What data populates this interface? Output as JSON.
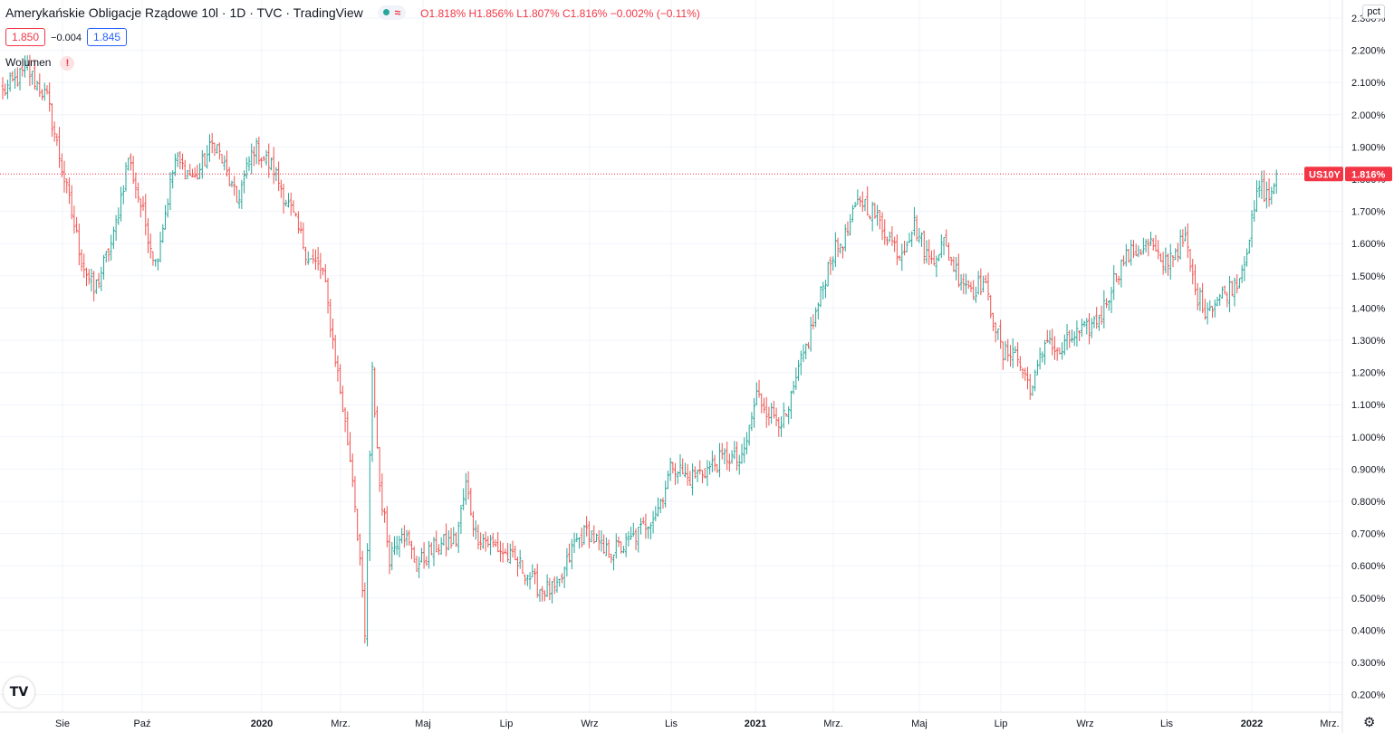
{
  "header": {
    "title": "Amerykańskie Obligacje Rządowe 10l · 1D · TVC · TradingView",
    "approx_symbol": "≈",
    "ohlc": {
      "o_label": "O",
      "o": "1.818%",
      "h_label": "H",
      "h": "1.856%",
      "l_label": "L",
      "l": "1.807%",
      "c_label": "C",
      "c": "1.816%",
      "change": "−0.002% (−0.11%)"
    }
  },
  "quotes": {
    "bid": "1.850",
    "spread": "−0.004",
    "ask": "1.845"
  },
  "volume": {
    "label": "Wolumen",
    "warning": "!"
  },
  "scale_button": "pct",
  "logo_text": "TV",
  "price_tag": {
    "symbol": "US10Y",
    "value": "1.816%"
  },
  "colors": {
    "up": "#26a69a",
    "down": "#ef5350",
    "grid": "#f0f3fa",
    "tag_bg": "#f23645",
    "ask": "#2962ff"
  },
  "icons": {
    "settings": "gear-icon",
    "warning": "warning-icon",
    "logo": "tradingview-logo-icon"
  },
  "chart_data": {
    "type": "ohlc",
    "title": "Amerykańskie Obligacje Rządowe 10l",
    "unit": "%",
    "ylim": [
      0.16,
      2.25
    ],
    "yticks": [
      "2.300%",
      "2.200%",
      "2.100%",
      "2.000%",
      "1.900%",
      "1.800%",
      "1.700%",
      "1.600%",
      "1.500%",
      "1.400%",
      "1.300%",
      "1.200%",
      "1.100%",
      "1.000%",
      "0.900%",
      "0.800%",
      "0.700%",
      "0.600%",
      "0.500%",
      "0.400%",
      "0.300%",
      "0.200%"
    ],
    "xticks": [
      "Sie",
      "Paź",
      "2020",
      "Mrz.",
      "Maj",
      "Lip",
      "Wrz",
      "Lis",
      "2021",
      "Mrz.",
      "Maj",
      "Lip",
      "Wrz",
      "Lis",
      "2022",
      "Mrz."
    ],
    "xticks_bold": [
      "2020",
      "2021",
      "2022"
    ],
    "last_close": 1.816,
    "path_points": [
      [
        0,
        2.07
      ],
      [
        10,
        2.14
      ],
      [
        18,
        2.05
      ],
      [
        25,
        1.8
      ],
      [
        32,
        1.55
      ],
      [
        37,
        1.45
      ],
      [
        45,
        1.62
      ],
      [
        51,
        1.87
      ],
      [
        58,
        1.66
      ],
      [
        62,
        1.54
      ],
      [
        70,
        1.86
      ],
      [
        78,
        1.8
      ],
      [
        86,
        1.92
      ],
      [
        95,
        1.73
      ],
      [
        102,
        1.9
      ],
      [
        110,
        1.83
      ],
      [
        118,
        1.68
      ],
      [
        124,
        1.56
      ],
      [
        130,
        1.51
      ],
      [
        138,
        1.09
      ],
      [
        142,
        0.88
      ],
      [
        145,
        0.62
      ],
      [
        147,
        0.37
      ],
      [
        150,
        1.2
      ],
      [
        153,
        0.85
      ],
      [
        157,
        0.63
      ],
      [
        162,
        0.72
      ],
      [
        168,
        0.6
      ],
      [
        176,
        0.66
      ],
      [
        184,
        0.68
      ],
      [
        188,
        0.85
      ],
      [
        192,
        0.7
      ],
      [
        200,
        0.66
      ],
      [
        210,
        0.6
      ],
      [
        218,
        0.53
      ],
      [
        225,
        0.52
      ],
      [
        232,
        0.67
      ],
      [
        238,
        0.71
      ],
      [
        244,
        0.64
      ],
      [
        252,
        0.66
      ],
      [
        258,
        0.7
      ],
      [
        266,
        0.78
      ],
      [
        272,
        0.92
      ],
      [
        278,
        0.87
      ],
      [
        286,
        0.9
      ],
      [
        294,
        0.94
      ],
      [
        300,
        0.92
      ],
      [
        306,
        1.13
      ],
      [
        312,
        1.07
      ],
      [
        318,
        1.05
      ],
      [
        323,
        1.2
      ],
      [
        330,
        1.38
      ],
      [
        336,
        1.56
      ],
      [
        342,
        1.62
      ],
      [
        348,
        1.74
      ],
      [
        353,
        1.7
      ],
      [
        358,
        1.64
      ],
      [
        364,
        1.57
      ],
      [
        370,
        1.66
      ],
      [
        376,
        1.55
      ],
      [
        382,
        1.6
      ],
      [
        388,
        1.5
      ],
      [
        394,
        1.46
      ],
      [
        398,
        1.48
      ],
      [
        402,
        1.37
      ],
      [
        406,
        1.25
      ],
      [
        410,
        1.28
      ],
      [
        414,
        1.2
      ],
      [
        418,
        1.15
      ],
      [
        424,
        1.32
      ],
      [
        428,
        1.25
      ],
      [
        434,
        1.31
      ],
      [
        440,
        1.33
      ],
      [
        446,
        1.38
      ],
      [
        450,
        1.47
      ],
      [
        455,
        1.55
      ],
      [
        460,
        1.58
      ],
      [
        466,
        1.6
      ],
      [
        470,
        1.53
      ],
      [
        476,
        1.58
      ],
      [
        480,
        1.61
      ],
      [
        484,
        1.45
      ],
      [
        488,
        1.4
      ],
      [
        492,
        1.42
      ],
      [
        498,
        1.46
      ],
      [
        502,
        1.5
      ],
      [
        506,
        1.62
      ],
      [
        510,
        1.78
      ],
      [
        514,
        1.74
      ],
      [
        517,
        1.816
      ]
    ]
  }
}
